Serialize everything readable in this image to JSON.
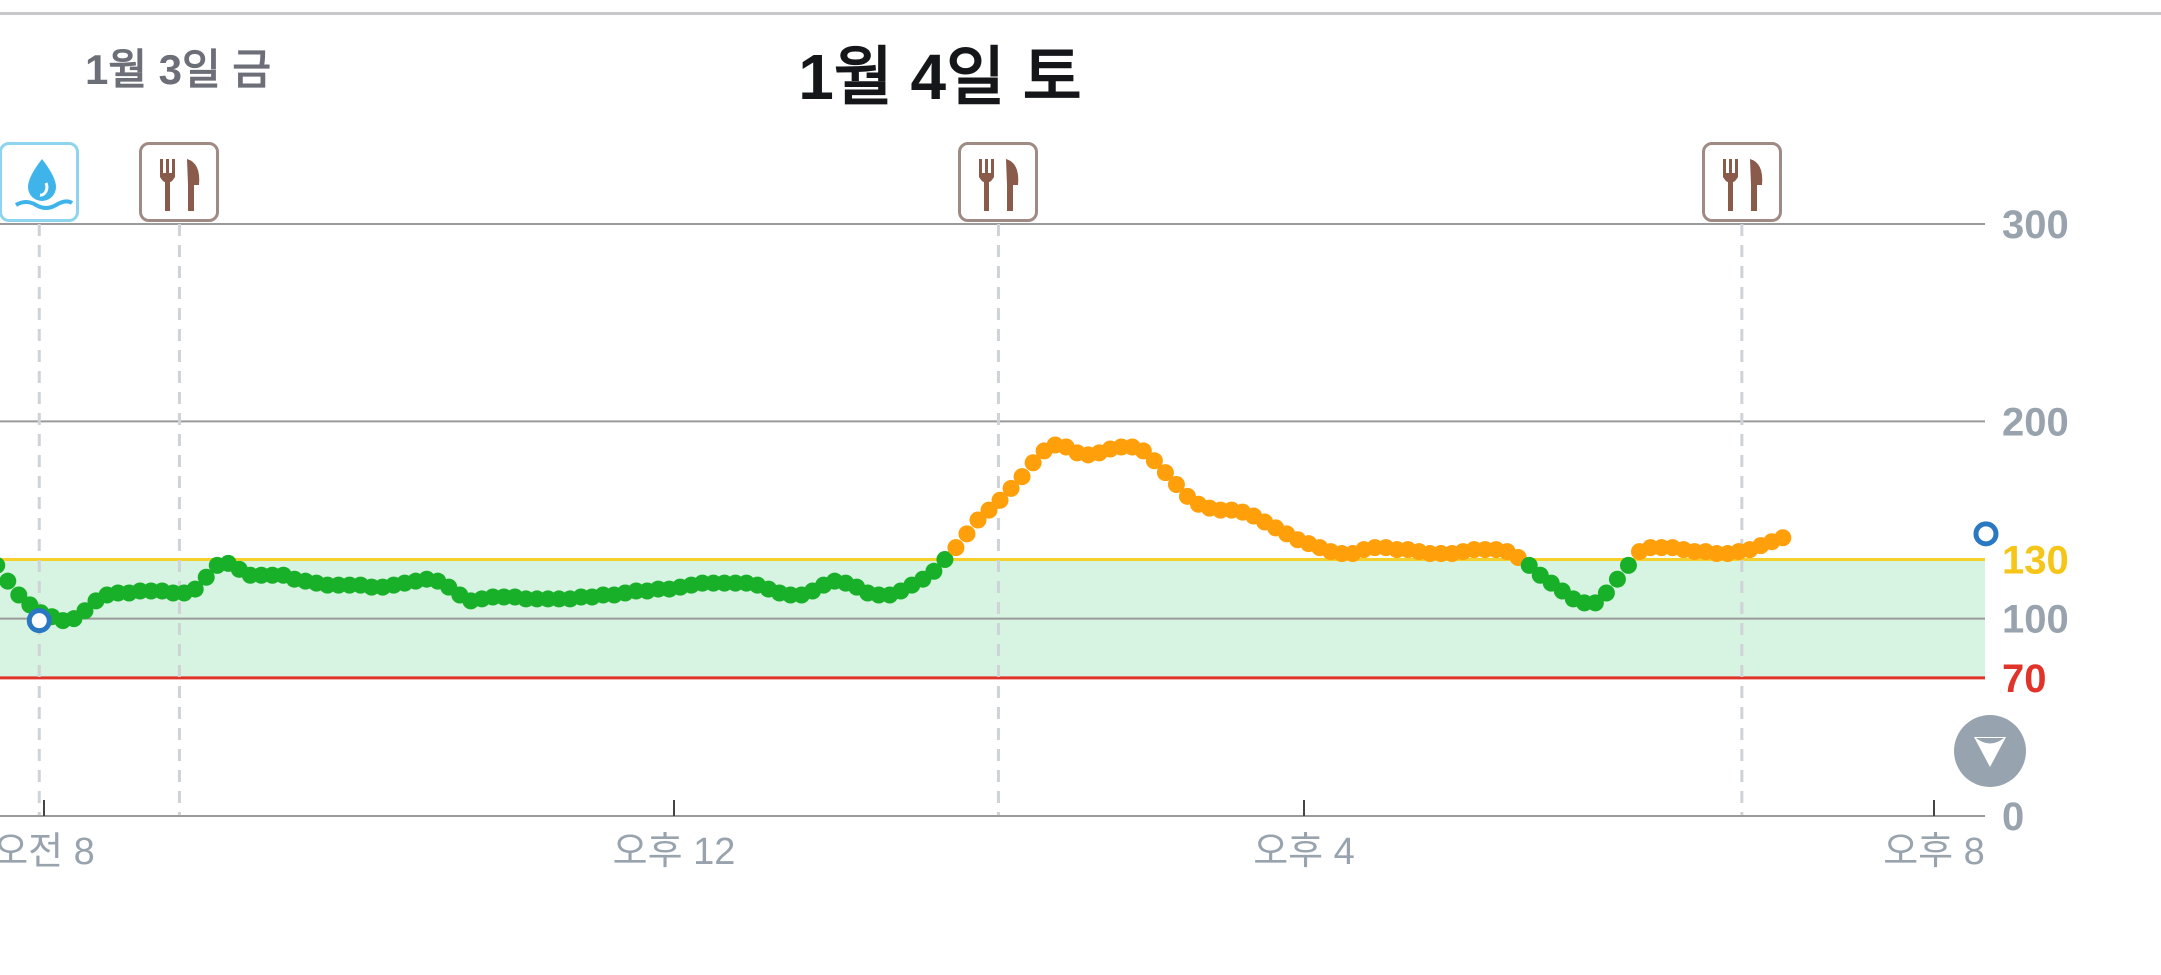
{
  "header": {
    "prev_day_label": "1월 3일 금",
    "current_day_label": "1월 4일 토"
  },
  "colors": {
    "in_range": "#19b029",
    "high": "#ff9f0a",
    "high_threshold": "#f5d02a",
    "low_threshold": "#e0342a",
    "target_band": "#d7f3e1",
    "axis_label": "#98a3ae",
    "meal_icon": "#8a5a4a",
    "water_icon": "#3fb4ea"
  },
  "controls": {
    "pan_button_icon": "chevron-down-icon"
  },
  "chart_data": {
    "type": "scatter",
    "title": "",
    "xlabel": "",
    "ylabel": "",
    "ylim": [
      0,
      300
    ],
    "x_unit": "hour",
    "x_ticks": [
      {
        "x": 8,
        "label": "오전 8"
      },
      {
        "x": 12,
        "label": "오후 12"
      },
      {
        "x": 16,
        "label": "오후 4"
      },
      {
        "x": 20,
        "label": "오후 8"
      }
    ],
    "y_ticks": [
      {
        "y": 300,
        "label": "300",
        "color": "#98a3ae"
      },
      {
        "y": 200,
        "label": "200",
        "color": "#98a3ae"
      },
      {
        "y": 130,
        "label": "130",
        "color": "#f5c518"
      },
      {
        "y": 100,
        "label": "100",
        "color": "#98a3ae"
      },
      {
        "y": 70,
        "label": "70",
        "color": "#e0342a"
      },
      {
        "y": 0,
        "label": "0",
        "color": "#98a3ae"
      }
    ],
    "target_range": {
      "low": 70,
      "high": 130
    },
    "events": [
      {
        "type": "water",
        "x": 7.97,
        "icon": "water-drop-icon"
      },
      {
        "type": "meal",
        "x": 8.86,
        "icon": "fork-knife-icon"
      },
      {
        "type": "meal",
        "x": 14.06,
        "icon": "fork-knife-icon"
      },
      {
        "type": "meal",
        "x": 18.78,
        "icon": "fork-knife-icon"
      }
    ],
    "hollow_points": [
      {
        "x": 7.97,
        "y": 99
      },
      {
        "x": 20.33,
        "y": 143
      }
    ],
    "series": [
      {
        "points": [
          [
            7.7,
            127
          ],
          [
            7.77,
            119
          ],
          [
            7.84,
            112
          ],
          [
            7.91,
            107
          ],
          [
            7.98,
            103
          ],
          [
            8.05,
            101
          ],
          [
            8.12,
            99
          ],
          [
            8.19,
            100
          ],
          [
            8.26,
            104
          ],
          [
            8.33,
            109
          ],
          [
            8.4,
            112
          ],
          [
            8.47,
            113
          ],
          [
            8.54,
            113
          ],
          [
            8.61,
            114
          ],
          [
            8.68,
            114
          ],
          [
            8.75,
            114
          ],
          [
            8.82,
            113
          ],
          [
            8.89,
            113
          ],
          [
            8.96,
            115
          ],
          [
            9.03,
            121
          ],
          [
            9.1,
            127
          ],
          [
            9.17,
            128
          ],
          [
            9.24,
            125
          ],
          [
            9.31,
            122
          ],
          [
            9.38,
            122
          ],
          [
            9.45,
            122
          ],
          [
            9.52,
            122
          ],
          [
            9.59,
            120
          ],
          [
            9.66,
            119
          ],
          [
            9.73,
            118
          ],
          [
            9.8,
            117
          ],
          [
            9.87,
            117
          ],
          [
            9.94,
            117
          ],
          [
            10.01,
            117
          ],
          [
            10.08,
            116
          ],
          [
            10.15,
            116
          ],
          [
            10.22,
            117
          ],
          [
            10.29,
            118
          ],
          [
            10.36,
            119
          ],
          [
            10.43,
            120
          ],
          [
            10.5,
            119
          ],
          [
            10.57,
            116
          ],
          [
            10.64,
            112
          ],
          [
            10.71,
            109
          ],
          [
            10.78,
            110
          ],
          [
            10.85,
            111
          ],
          [
            10.92,
            111
          ],
          [
            10.99,
            111
          ],
          [
            11.06,
            110
          ],
          [
            11.13,
            110
          ],
          [
            11.2,
            110
          ],
          [
            11.27,
            110
          ],
          [
            11.34,
            110
          ],
          [
            11.41,
            111
          ],
          [
            11.48,
            111
          ],
          [
            11.55,
            112
          ],
          [
            11.62,
            112
          ],
          [
            11.69,
            113
          ],
          [
            11.76,
            114
          ],
          [
            11.83,
            114
          ],
          [
            11.9,
            115
          ],
          [
            11.97,
            115
          ],
          [
            12.04,
            116
          ],
          [
            12.11,
            117
          ],
          [
            12.18,
            118
          ],
          [
            12.25,
            118
          ],
          [
            12.32,
            118
          ],
          [
            12.39,
            118
          ],
          [
            12.46,
            118
          ],
          [
            12.53,
            117
          ],
          [
            12.6,
            115
          ],
          [
            12.67,
            113
          ],
          [
            12.74,
            112
          ],
          [
            12.81,
            112
          ],
          [
            12.88,
            114
          ],
          [
            12.95,
            117
          ],
          [
            13.02,
            119
          ],
          [
            13.09,
            118
          ],
          [
            13.16,
            116
          ],
          [
            13.23,
            113
          ],
          [
            13.3,
            112
          ],
          [
            13.37,
            112
          ],
          [
            13.44,
            114
          ],
          [
            13.51,
            117
          ],
          [
            13.58,
            120
          ],
          [
            13.65,
            124
          ],
          [
            13.72,
            130
          ],
          [
            13.79,
            136
          ],
          [
            13.86,
            143
          ],
          [
            13.93,
            150
          ],
          [
            14.0,
            155
          ],
          [
            14.07,
            160
          ],
          [
            14.14,
            166
          ],
          [
            14.21,
            172
          ],
          [
            14.28,
            179
          ],
          [
            14.35,
            185
          ],
          [
            14.42,
            188
          ],
          [
            14.49,
            187
          ],
          [
            14.56,
            184
          ],
          [
            14.63,
            183
          ],
          [
            14.7,
            184
          ],
          [
            14.77,
            186
          ],
          [
            14.84,
            187
          ],
          [
            14.91,
            187
          ],
          [
            14.98,
            185
          ],
          [
            15.05,
            180
          ],
          [
            15.12,
            174
          ],
          [
            15.19,
            168
          ],
          [
            15.26,
            162
          ],
          [
            15.33,
            158
          ],
          [
            15.4,
            156
          ],
          [
            15.47,
            155
          ],
          [
            15.54,
            155
          ],
          [
            15.61,
            154
          ],
          [
            15.68,
            152
          ],
          [
            15.75,
            149
          ],
          [
            15.82,
            146
          ],
          [
            15.89,
            143
          ],
          [
            15.96,
            140
          ],
          [
            16.03,
            138
          ],
          [
            16.1,
            136
          ],
          [
            16.17,
            134
          ],
          [
            16.24,
            133
          ],
          [
            16.31,
            133
          ],
          [
            16.38,
            135
          ],
          [
            16.45,
            136
          ],
          [
            16.52,
            136
          ],
          [
            16.59,
            135
          ],
          [
            16.66,
            135
          ],
          [
            16.73,
            134
          ],
          [
            16.8,
            133
          ],
          [
            16.87,
            133
          ],
          [
            16.94,
            133
          ],
          [
            17.01,
            134
          ],
          [
            17.08,
            135
          ],
          [
            17.15,
            135
          ],
          [
            17.22,
            135
          ],
          [
            17.29,
            134
          ],
          [
            17.36,
            131
          ],
          [
            17.43,
            127
          ],
          [
            17.5,
            122
          ],
          [
            17.57,
            118
          ],
          [
            17.64,
            114
          ],
          [
            17.71,
            110
          ],
          [
            17.78,
            108
          ],
          [
            17.85,
            108
          ],
          [
            17.92,
            113
          ],
          [
            17.99,
            120
          ],
          [
            18.06,
            127
          ],
          [
            18.13,
            134
          ],
          [
            18.2,
            136
          ],
          [
            18.27,
            136
          ],
          [
            18.34,
            136
          ],
          [
            18.41,
            135
          ],
          [
            18.48,
            134
          ],
          [
            18.55,
            134
          ],
          [
            18.62,
            133
          ],
          [
            18.69,
            133
          ],
          [
            18.76,
            134
          ],
          [
            18.83,
            135
          ],
          [
            18.9,
            137
          ],
          [
            18.97,
            139
          ],
          [
            19.04,
            141
          ]
        ]
      }
    ]
  }
}
